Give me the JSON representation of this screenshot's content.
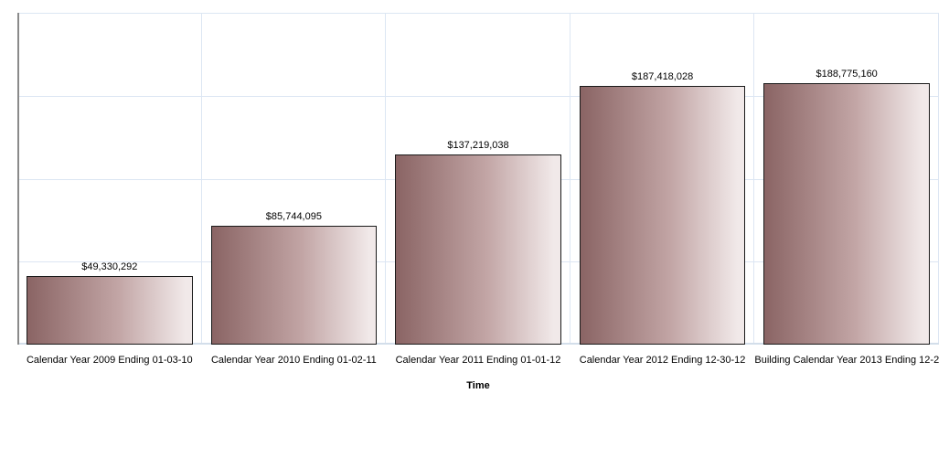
{
  "chart_data": {
    "type": "bar",
    "title": "",
    "xlabel": "Time",
    "ylabel": "",
    "categories": [
      "Calendar Year 2009 Ending 01-03-10",
      "Calendar Year 2010 Ending 01-02-11",
      "Calendar Year 2011 Ending 01-01-12",
      "Calendar Year 2012 Ending 12-30-12",
      "Building Calendar Year 2013 Ending 12-2..."
    ],
    "values": [
      49330292,
      85744095,
      137219038,
      187418028,
      188775160
    ],
    "value_labels": [
      "$49,330,292",
      "$85,744,095",
      "$137,219,038",
      "$187,418,028",
      "$188,775,160"
    ],
    "ylim": [
      0,
      240000000
    ],
    "y_gridline_step": 60000000,
    "grid": true,
    "legend_position": "none",
    "y_tick_labels_visible": false
  },
  "colors": {
    "background": "#ffffff",
    "bar_gradient_dark": "#8a6464",
    "bar_gradient_mid": "#c2a5a5",
    "bar_gradient_light": "#f1e9e9",
    "bar_border": "#1a1a1a",
    "gridline": "#dce6f3",
    "axis_line": "#8a8a8a",
    "baseline": "#d3deea",
    "label_text": "#000000"
  }
}
